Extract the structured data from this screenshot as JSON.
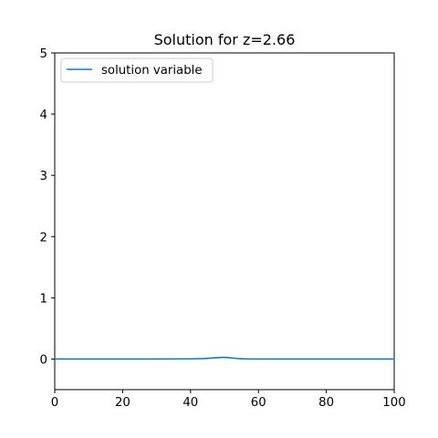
{
  "chart_data": {
    "type": "line",
    "title": "Solution for z=2.66",
    "xlabel": "",
    "ylabel": "",
    "xlim": [
      0,
      100
    ],
    "ylim": [
      -0.5,
      5
    ],
    "x_ticks": [
      0,
      20,
      40,
      60,
      80,
      100
    ],
    "y_ticks": [
      0,
      1,
      2,
      3,
      4,
      5
    ],
    "grid": false,
    "legend": {
      "placement": "top-left",
      "entries": [
        "solution variable"
      ]
    },
    "series": [
      {
        "name": "solution variable",
        "color": "#1f77b4",
        "x": [
          0,
          10,
          20,
          30,
          40,
          44,
          46,
          48,
          49,
          50,
          51,
          52,
          54,
          56,
          60,
          70,
          80,
          90,
          100
        ],
        "y": [
          0,
          0,
          0,
          0,
          0.003,
          0.008,
          0.015,
          0.023,
          0.026,
          0.027,
          0.025,
          0.018,
          0.007,
          0.002,
          0,
          0,
          0,
          0,
          0
        ]
      }
    ]
  }
}
